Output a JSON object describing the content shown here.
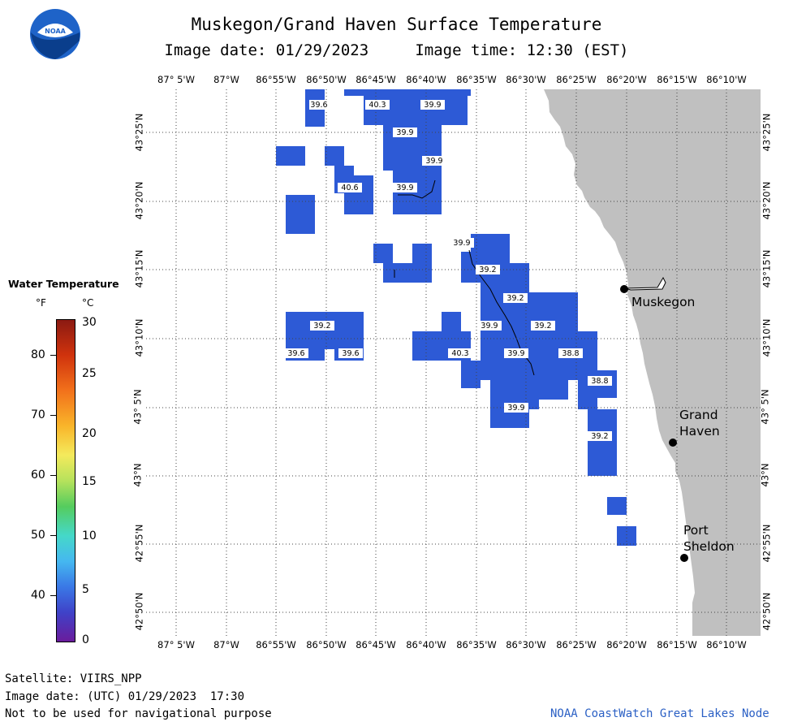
{
  "header": {
    "title": "Muskegon/Grand Haven Surface Temperature",
    "subtitle": "Image date: 01/29/2023     Image time: 12:30 (EST)",
    "logo_text": "NOAA"
  },
  "map": {
    "lon_labels": [
      "87° 5'W",
      "87°W",
      "86°55'W",
      "86°50'W",
      "86°45'W",
      "86°40'W",
      "86°35'W",
      "86°30'W",
      "86°25'W",
      "86°20'W",
      "86°15'W",
      "86°10'W"
    ],
    "lat_labels": [
      "43°25'N",
      "43°20'N",
      "43°15'N",
      "43°10'N",
      "43° 5'N",
      "43°N",
      "42°55'N",
      "42°50'N"
    ],
    "temperature_labels": [
      "39.6",
      "40.3",
      "39.9",
      "39.9",
      "39.9",
      "40.6",
      "39.9",
      "39.9",
      "39.2",
      "39.2",
      "39.2",
      "39.2",
      "39.9",
      "39.6",
      "39.6",
      "40.3",
      "39.9",
      "38.8",
      "38.8",
      "39.9",
      "39.2"
    ],
    "cities": [
      {
        "name_line1": "Muskegon",
        "name_line2": ""
      },
      {
        "name_line1": "Grand",
        "name_line2": "Haven"
      },
      {
        "name_line1": "Port",
        "name_line2": "Sheldon"
      }
    ],
    "colors": {
      "water_fill": "#2d5ad6",
      "land": "#c0c0c0",
      "grid": "#555555"
    }
  },
  "legend": {
    "title": "Water Temperature",
    "unit_f": "°F",
    "unit_c": "°C",
    "f_ticks": [
      "80",
      "70",
      "60",
      "50",
      "40"
    ],
    "c_ticks": [
      "30",
      "25",
      "20",
      "15",
      "10",
      "5",
      "0"
    ]
  },
  "footer": {
    "satellite": "Satellite: VIIRS_NPP",
    "utc_date": "Image date: (UTC) 01/29/2023  17:30",
    "disclaimer": "Not to be used for navigational purpose",
    "credit": "NOAA CoastWatch Great Lakes Node"
  }
}
